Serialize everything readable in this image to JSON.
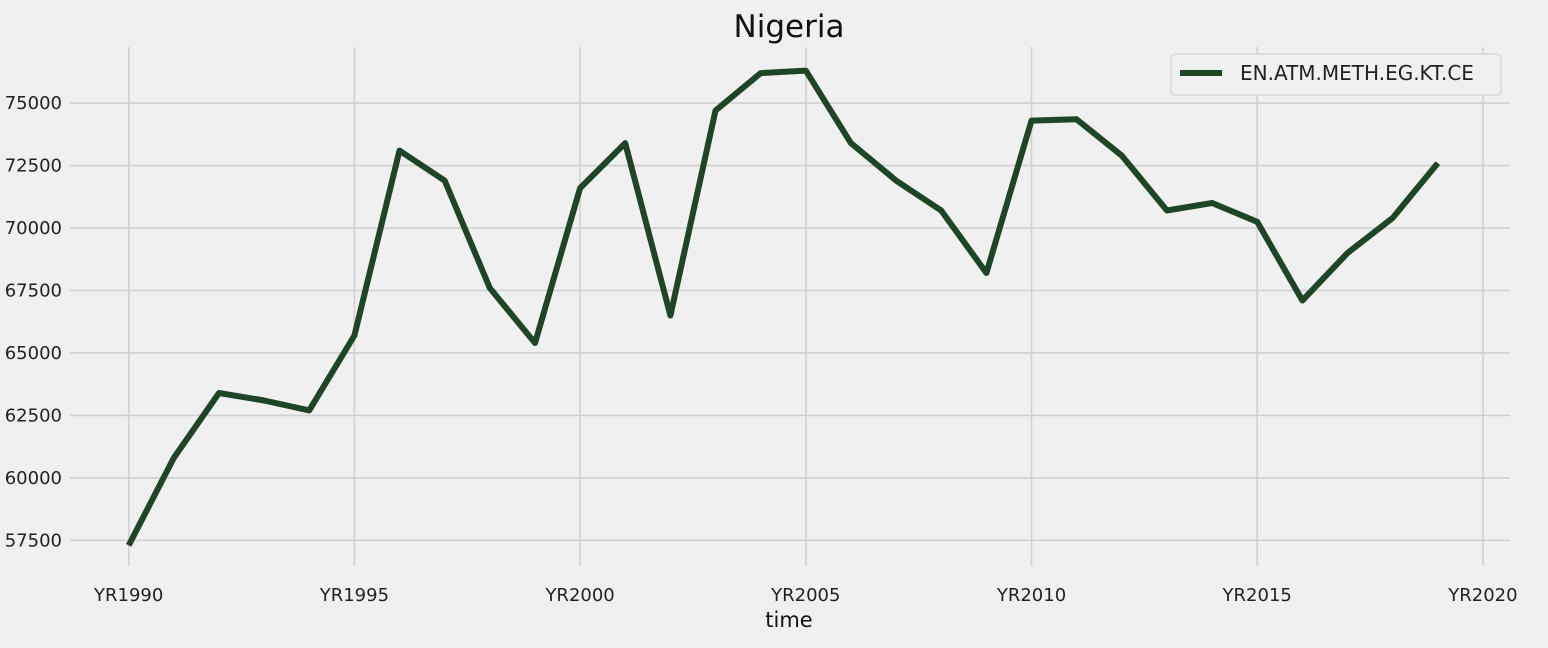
{
  "chart_data": {
    "type": "line",
    "title": "Nigeria",
    "xlabel": "time",
    "ylabel": "",
    "x": [
      1990,
      1991,
      1992,
      1993,
      1994,
      1995,
      1996,
      1997,
      1998,
      1999,
      2000,
      2001,
      2002,
      2003,
      2004,
      2005,
      2006,
      2007,
      2008,
      2009,
      2010,
      2011,
      2012,
      2013,
      2014,
      2015,
      2016,
      2017,
      2018,
      2019
    ],
    "series": [
      {
        "name": "EN.ATM.METH.EG.KT.CE",
        "color": "#1d4526",
        "values": [
          57300,
          60800,
          63400,
          63100,
          62700,
          65700,
          73100,
          71900,
          67600,
          65400,
          71600,
          73400,
          66500,
          74700,
          76200,
          76300,
          73400,
          71900,
          70700,
          68200,
          74300,
          74350,
          72900,
          70700,
          71000,
          70250,
          67100,
          69000,
          70400,
          72600
        ]
      }
    ],
    "xticks": [
      1990,
      1995,
      2000,
      2005,
      2010,
      2015,
      2020
    ],
    "xtick_labels": [
      "YR1990",
      "YR1995",
      "YR2000",
      "YR2005",
      "YR2010",
      "YR2015",
      "YR2020"
    ],
    "yticks": [
      57500,
      60000,
      62500,
      65000,
      67500,
      70000,
      72500,
      75000
    ],
    "ytick_labels": [
      "57500",
      "60000",
      "62500",
      "65000",
      "67500",
      "70000",
      "72500",
      "75000"
    ],
    "xlim": [
      1988.7,
      2020.6
    ],
    "ylim": [
      56475,
      77525
    ],
    "grid": true,
    "legend_position": "top-right",
    "background": "#f0f0f0",
    "grid_color": "#d0d0d0"
  }
}
